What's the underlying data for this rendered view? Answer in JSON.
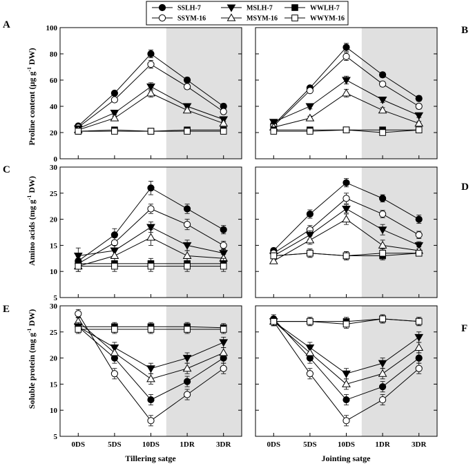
{
  "legend": [
    {
      "name": "SSLH-7",
      "marker": "circle",
      "fill": "#000000"
    },
    {
      "name": "MSLH-7",
      "marker": "triangle-down",
      "fill": "#000000"
    },
    {
      "name": "WWLH-7",
      "marker": "square",
      "fill": "#000000"
    },
    {
      "name": "SSYM-16",
      "marker": "circle",
      "fill": "#ffffff"
    },
    {
      "name": "MSYM-16",
      "marker": "triangle-up",
      "fill": "#ffffff"
    },
    {
      "name": "WWYM-16",
      "marker": "square",
      "fill": "#ffffff"
    }
  ],
  "shade_color": "#e0e0e0",
  "x_categories": [
    "0DS",
    "5DS",
    "10DS",
    "1DR",
    "3DR"
  ],
  "x_titles": {
    "left": "Tillering satge",
    "right": "Jointing satge"
  },
  "y_titles": {
    "row1": {
      "main": "Proline content (μg g",
      "sup": "-1",
      "tail": " DW)"
    },
    "row2": {
      "main": "Amino acids (mg g",
      "sup": "-1",
      "tail": " DW)"
    },
    "row3": {
      "main": "Soluble protein (mg g",
      "sup": "-1",
      "tail": " DW)"
    }
  },
  "chart_data": [
    {
      "panel": "A",
      "type": "line",
      "ylim": [
        0,
        100
      ],
      "yticks": [
        0,
        20,
        40,
        60,
        80,
        100
      ],
      "shaded_from": "10DS",
      "ylabel": "Proline content (μg g-1 DW)",
      "xlabel": "",
      "series": [
        {
          "name": "SSLH-7",
          "values": [
            25,
            50,
            80,
            60,
            40
          ],
          "errors": [
            1,
            1.5,
            3,
            2,
            2
          ]
        },
        {
          "name": "SSYM-16",
          "values": [
            24,
            45,
            72,
            55,
            36
          ],
          "errors": [
            1,
            1.5,
            3,
            2,
            2
          ]
        },
        {
          "name": "MSLH-7",
          "values": [
            23,
            35,
            55,
            40,
            30
          ],
          "errors": [
            1,
            1.5,
            3,
            2,
            1.5
          ]
        },
        {
          "name": "MSYM-16",
          "values": [
            22,
            31,
            50,
            37,
            27
          ],
          "errors": [
            1,
            1.5,
            3,
            2,
            1.5
          ]
        },
        {
          "name": "WWLH-7",
          "values": [
            21,
            22,
            21,
            22,
            22
          ],
          "errors": [
            1,
            1,
            1,
            1,
            1
          ]
        },
        {
          "name": "WWYM-16",
          "values": [
            21,
            21,
            21,
            21,
            21
          ],
          "errors": [
            1,
            1,
            1,
            1,
            1
          ]
        }
      ]
    },
    {
      "panel": "B",
      "type": "line",
      "ylim": [
        0,
        100
      ],
      "yticks": [
        0,
        20,
        40,
        60,
        80,
        100
      ],
      "shaded_from": "10DS",
      "ylabel": "",
      "xlabel": "",
      "series": [
        {
          "name": "SSLH-7",
          "values": [
            26,
            54,
            85,
            64,
            46
          ],
          "errors": [
            1,
            1.5,
            3,
            2,
            2
          ]
        },
        {
          "name": "SSYM-16",
          "values": [
            25,
            52,
            78,
            57,
            40
          ],
          "errors": [
            1,
            1.5,
            3,
            2,
            2
          ]
        },
        {
          "name": "MSLH-7",
          "values": [
            28,
            40,
            60,
            45,
            33
          ],
          "errors": [
            1,
            2,
            3,
            2,
            1.5
          ]
        },
        {
          "name": "MSYM-16",
          "values": [
            24,
            31,
            50,
            37,
            27
          ],
          "errors": [
            1,
            1.5,
            3,
            2,
            1.5
          ]
        },
        {
          "name": "WWLH-7",
          "values": [
            22,
            22,
            22,
            22,
            22
          ],
          "errors": [
            1,
            1,
            1,
            1,
            1
          ]
        },
        {
          "name": "WWYM-16",
          "values": [
            21,
            21,
            22,
            20,
            22
          ],
          "errors": [
            1,
            1,
            1,
            2,
            1
          ]
        }
      ]
    },
    {
      "panel": "C",
      "type": "line",
      "ylim": [
        5,
        30
      ],
      "yticks": [
        5,
        10,
        15,
        20,
        25,
        30
      ],
      "shaded_from": "10DS",
      "ylabel": "Amino acids (mg g-1 DW)",
      "xlabel": "",
      "series": [
        {
          "name": "SSLH-7",
          "values": [
            12,
            17,
            26,
            22,
            18
          ],
          "errors": [
            0.8,
            1.2,
            1.3,
            0.9,
            0.8
          ]
        },
        {
          "name": "SSYM-16",
          "values": [
            11.5,
            15.5,
            22,
            19,
            15
          ],
          "errors": [
            0.8,
            1.0,
            0.9,
            1.0,
            0.8
          ]
        },
        {
          "name": "MSLH-7",
          "values": [
            13,
            14,
            18.5,
            15,
            13.5
          ],
          "errors": [
            1.5,
            1.0,
            1.0,
            1.0,
            0.8
          ]
        },
        {
          "name": "MSYM-16",
          "values": [
            11,
            13,
            16.5,
            13,
            12.5
          ],
          "errors": [
            1.0,
            1.0,
            1.5,
            1.0,
            0.8
          ]
        },
        {
          "name": "WWLH-7",
          "values": [
            11.5,
            11.5,
            11.5,
            11.5,
            11.5
          ],
          "errors": [
            1,
            1,
            1,
            1,
            1
          ]
        },
        {
          "name": "WWYM-16",
          "values": [
            11,
            11,
            11,
            11,
            11
          ],
          "errors": [
            1,
            1,
            1,
            1,
            1
          ]
        }
      ]
    },
    {
      "panel": "D",
      "type": "line",
      "ylim": [
        5,
        30
      ],
      "yticks": [
        5,
        10,
        15,
        20,
        25,
        30
      ],
      "shaded_from": "10DS",
      "ylabel": "",
      "xlabel": "",
      "series": [
        {
          "name": "SSLH-7",
          "values": [
            14,
            21,
            27,
            24,
            20
          ],
          "errors": [
            0.5,
            0.8,
            0.8,
            0.7,
            0.8
          ]
        },
        {
          "name": "SSYM-16",
          "values": [
            13.5,
            18,
            24,
            21,
            17
          ],
          "errors": [
            0.5,
            0.8,
            1.0,
            0.7,
            0.7
          ]
        },
        {
          "name": "MSLH-7",
          "values": [
            13,
            17,
            22,
            18,
            15
          ],
          "errors": [
            0.5,
            0.8,
            0.8,
            1.0,
            0.7
          ]
        },
        {
          "name": "MSYM-16",
          "values": [
            12,
            16,
            20,
            15,
            14
          ],
          "errors": [
            0.5,
            0.8,
            1.0,
            1.0,
            0.7
          ]
        },
        {
          "name": "WWLH-7",
          "values": [
            13,
            13.5,
            13,
            13,
            13.5
          ],
          "errors": [
            0.5,
            0.8,
            0.8,
            0.8,
            0.5
          ]
        },
        {
          "name": "WWYM-16",
          "values": [
            13,
            13.5,
            13,
            13.5,
            13.5
          ],
          "errors": [
            0.5,
            0.8,
            0.8,
            0.8,
            0.5
          ]
        }
      ]
    },
    {
      "panel": "E",
      "type": "line",
      "ylim": [
        5,
        30
      ],
      "yticks": [
        5,
        10,
        15,
        20,
        25,
        30
      ],
      "shaded_from": "10DS",
      "ylabel": "Soluble protein (mg g-1 DW)",
      "xlabel": "Tillering satge",
      "series": [
        {
          "name": "SSLH-7",
          "values": [
            26,
            20,
            12,
            15.5,
            20
          ],
          "errors": [
            0.8,
            1.0,
            1.0,
            1.0,
            1.0
          ]
        },
        {
          "name": "SSYM-16",
          "values": [
            28.5,
            17,
            8,
            13,
            18
          ],
          "errors": [
            0.8,
            1.0,
            1.0,
            1.0,
            1.0
          ]
        },
        {
          "name": "MSLH-7",
          "values": [
            26,
            22,
            18,
            20,
            23
          ],
          "errors": [
            0.8,
            1.0,
            1.0,
            1.0,
            1.0
          ]
        },
        {
          "name": "MSYM-16",
          "values": [
            27,
            21,
            16,
            18,
            21
          ],
          "errors": [
            0.8,
            1.0,
            1.0,
            1.0,
            1.0
          ]
        },
        {
          "name": "WWLH-7",
          "values": [
            26,
            26,
            26,
            26,
            25.8
          ],
          "errors": [
            0.8,
            0.8,
            0.8,
            0.8,
            0.8
          ]
        },
        {
          "name": "WWYM-16",
          "values": [
            25.5,
            25.5,
            25.5,
            25.5,
            25.5
          ],
          "errors": [
            0.8,
            0.8,
            0.8,
            0.8,
            0.8
          ]
        }
      ]
    },
    {
      "panel": "F",
      "type": "line",
      "ylim": [
        5,
        30
      ],
      "yticks": [
        5,
        10,
        15,
        20,
        25,
        30
      ],
      "shaded_from": "10DS",
      "ylabel": "",
      "xlabel": "Jointing satge",
      "series": [
        {
          "name": "SSLH-7",
          "values": [
            27.5,
            20,
            12,
            14.5,
            20
          ],
          "errors": [
            0.8,
            1.0,
            1.0,
            1.0,
            1.0
          ]
        },
        {
          "name": "SSYM-16",
          "values": [
            27,
            17,
            8,
            12,
            18
          ],
          "errors": [
            0.8,
            1.0,
            1.0,
            1.0,
            1.0
          ]
        },
        {
          "name": "MSLH-7",
          "values": [
            27,
            22,
            17,
            19,
            24
          ],
          "errors": [
            0.8,
            1.0,
            1.0,
            1.0,
            1.0
          ]
        },
        {
          "name": "MSYM-16",
          "values": [
            27,
            21,
            15,
            17,
            22
          ],
          "errors": [
            0.8,
            1.0,
            1.0,
            1.0,
            1.0
          ]
        },
        {
          "name": "WWLH-7",
          "values": [
            27,
            27,
            27,
            27.5,
            27
          ],
          "errors": [
            0.8,
            0.8,
            0.8,
            0.8,
            0.8
          ]
        },
        {
          "name": "WWYM-16",
          "values": [
            27,
            27,
            26.5,
            27.5,
            27
          ],
          "errors": [
            0.8,
            0.8,
            0.8,
            0.8,
            0.8
          ]
        }
      ]
    }
  ]
}
